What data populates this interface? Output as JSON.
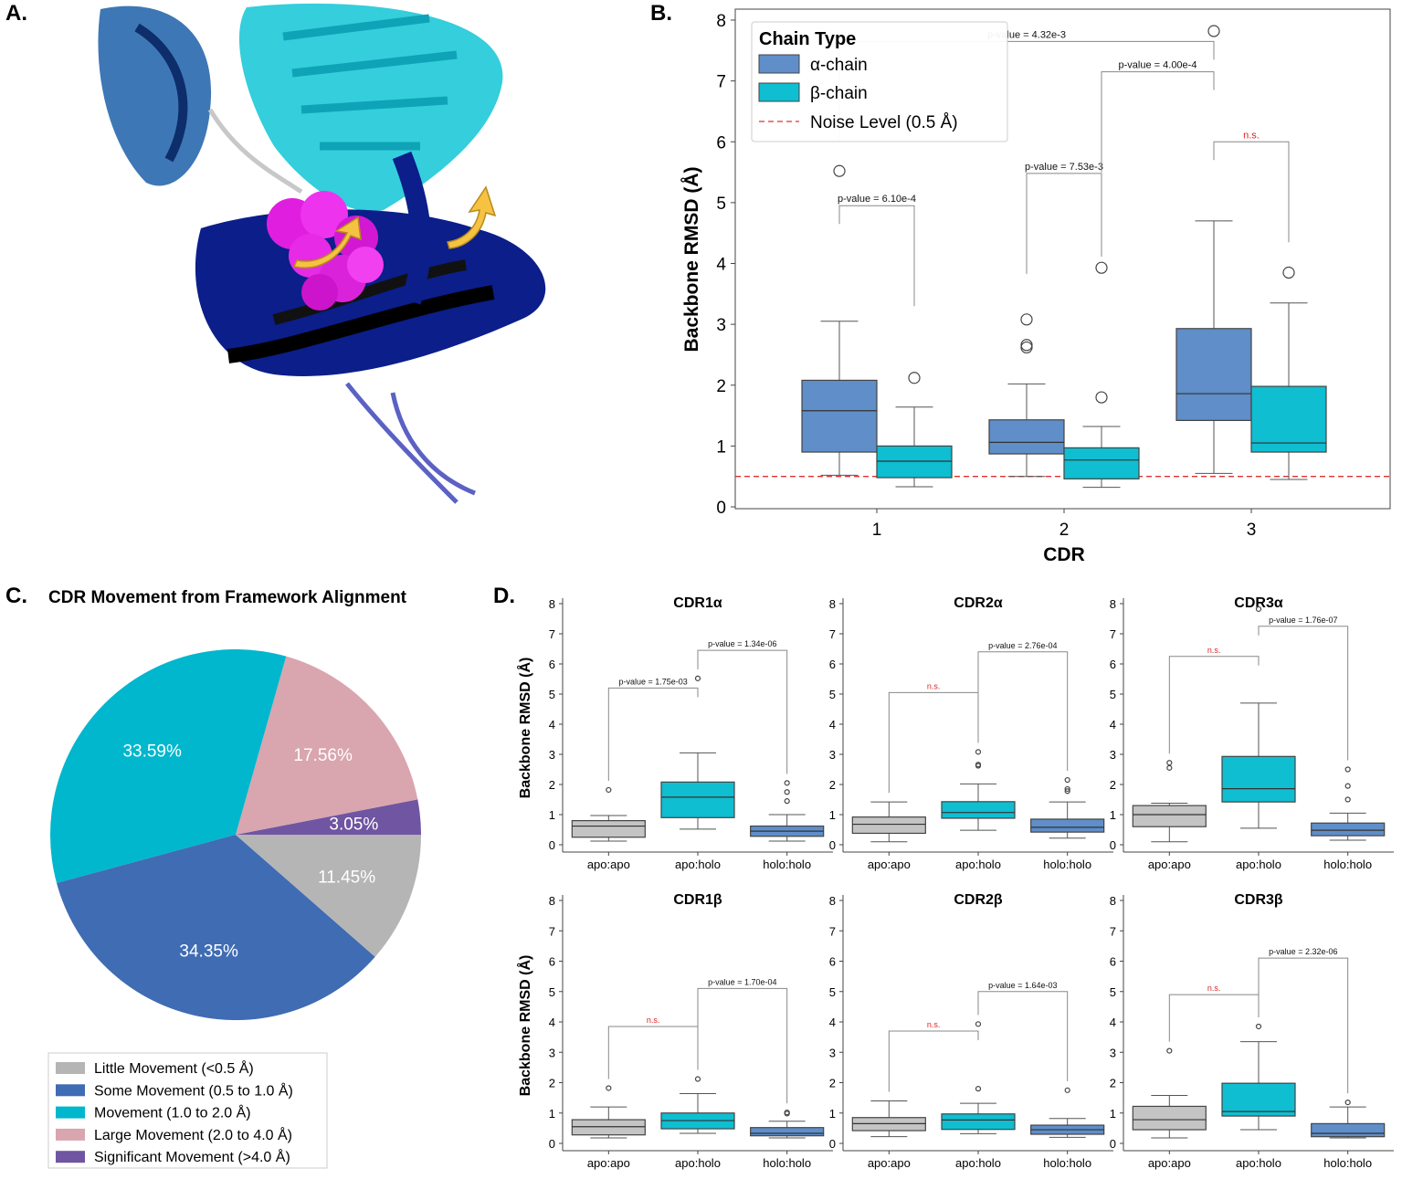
{
  "colors": {
    "alpha": "#5f8ec9",
    "beta": "#0fbed0",
    "apo": "#c4c4c4",
    "pie_little": "#b5b5b5",
    "pie_some": "#3f6cb3",
    "pie_movement": "#00b7cd",
    "pie_large": "#d9a5ae",
    "pie_significant": "#6f55a2",
    "noise": "#dd3333",
    "ns": "#dd2222"
  },
  "panels": {
    "a": "A.",
    "b": "B.",
    "c": "C.",
    "d": "D."
  },
  "structure_icon": "tcr-pmhc-ribbon-structure",
  "chart_data": [
    {
      "id": "B",
      "type": "boxplot",
      "xlabel": "CDR",
      "ylabel": "Backbone RMSD (Å)",
      "ylim": [
        0,
        8
      ],
      "yticks": [
        0,
        1,
        2,
        3,
        4,
        5,
        6,
        7,
        8
      ],
      "categories": [
        "1",
        "2",
        "3"
      ],
      "legend": {
        "title": "Chain Type",
        "placement": "top-left",
        "items": [
          "α-chain",
          "β-chain",
          "Noise Level (0.5 Å)"
        ]
      },
      "noise_level": 0.5,
      "series": [
        {
          "name": "α-chain",
          "color_key": "alpha",
          "boxes": [
            {
              "whislo": 0.52,
              "q1": 0.9,
              "med": 1.58,
              "q3": 2.08,
              "whishi": 3.05,
              "fliers": [
                5.52
              ]
            },
            {
              "whislo": 0.5,
              "q1": 0.87,
              "med": 1.06,
              "q3": 1.43,
              "whishi": 2.02,
              "fliers": [
                2.62,
                2.66,
                3.08
              ]
            },
            {
              "whislo": 0.55,
              "q1": 1.42,
              "med": 1.86,
              "q3": 2.93,
              "whishi": 4.7,
              "fliers": [
                7.82
              ]
            }
          ]
        },
        {
          "name": "β-chain",
          "color_key": "beta",
          "boxes": [
            {
              "whislo": 0.33,
              "q1": 0.48,
              "med": 0.75,
              "q3": 1.0,
              "whishi": 1.64,
              "fliers": [
                2.12
              ]
            },
            {
              "whislo": 0.32,
              "q1": 0.46,
              "med": 0.77,
              "q3": 0.97,
              "whishi": 1.32,
              "fliers": [
                1.8,
                3.93
              ]
            },
            {
              "whislo": 0.45,
              "q1": 0.9,
              "med": 1.05,
              "q3": 1.98,
              "whishi": 3.35,
              "fliers": [
                3.85
              ]
            }
          ]
        }
      ],
      "annotations": [
        {
          "text": "p-value = 6.10e-4",
          "from": "α1",
          "to": "β1",
          "level": 4.95
        },
        {
          "text": "p-value = 7.53e-3",
          "from": "α2",
          "to": "β2",
          "level": 5.48
        },
        {
          "text": "p-value = 4.00e-4",
          "from": "β2",
          "to": "α3",
          "level": 7.15
        },
        {
          "text": "n.s.",
          "from": "α3",
          "to": "β3",
          "level": 6.0,
          "ns": true
        },
        {
          "text": "p-value = 4.32e-3",
          "from": "α1",
          "to": "α3",
          "level": 7.65
        }
      ]
    },
    {
      "id": "C",
      "type": "pie",
      "title": "CDR Movement from Framework Alignment",
      "slices": [
        {
          "label": "Little Movement (<0.5 Å)",
          "value": 11.45,
          "pct": "11.45%",
          "color_key": "pie_little"
        },
        {
          "label": "Some Movement (0.5 to 1.0 Å)",
          "value": 34.35,
          "pct": "34.35%",
          "color_key": "pie_some"
        },
        {
          "label": "Movement (1.0 to 2.0 Å)",
          "value": 33.59,
          "pct": "33.59%",
          "color_key": "pie_movement"
        },
        {
          "label": "Large Movement (2.0 to 4.0 Å)",
          "value": 17.56,
          "pct": "17.56%",
          "color_key": "pie_large"
        },
        {
          "label": "Significant Movement (>4.0 Å)",
          "value": 3.05,
          "pct": "3.05%",
          "color_key": "pie_significant"
        }
      ],
      "draw_order": [
        4,
        3,
        2,
        1,
        0
      ],
      "legend": {
        "placement": "bottom-left",
        "order": [
          0,
          1,
          2,
          3,
          4
        ]
      }
    },
    {
      "id": "D",
      "type": "boxplot-grid",
      "ylabel": "Backbone RMSD (Å)",
      "ylim": [
        0,
        8
      ],
      "yticks": [
        0,
        1,
        2,
        3,
        4,
        5,
        6,
        7,
        8
      ],
      "categories": [
        "apo:apo",
        "apo:holo",
        "holo:holo"
      ],
      "panels": [
        {
          "title": "CDR1α",
          "boxes": [
            {
              "color_key": "apo",
              "whislo": 0.12,
              "q1": 0.25,
              "med": 0.62,
              "q3": 0.8,
              "whishi": 0.97,
              "fliers": [
                1.82
              ]
            },
            {
              "color_key": "beta",
              "whislo": 0.52,
              "q1": 0.9,
              "med": 1.58,
              "q3": 2.08,
              "whishi": 3.05,
              "fliers": [
                5.52
              ]
            },
            {
              "color_key": "alpha",
              "whislo": 0.12,
              "q1": 0.28,
              "med": 0.45,
              "q3": 0.62,
              "whishi": 1.0,
              "fliers": [
                1.45,
                1.75,
                2.05
              ]
            }
          ],
          "annotations": [
            {
              "text": "p-value = 1.75e-03",
              "from": 0,
              "to": 1,
              "level": 5.2
            },
            {
              "text": "p-value = 1.34e-06",
              "from": 1,
              "to": 2,
              "level": 6.45
            }
          ]
        },
        {
          "title": "CDR2α",
          "boxes": [
            {
              "color_key": "apo",
              "whislo": 0.1,
              "q1": 0.38,
              "med": 0.68,
              "q3": 0.92,
              "whishi": 1.42,
              "fliers": []
            },
            {
              "color_key": "beta",
              "whislo": 0.48,
              "q1": 0.88,
              "med": 1.07,
              "q3": 1.43,
              "whishi": 2.02,
              "fliers": [
                2.62,
                2.66,
                3.08
              ]
            },
            {
              "color_key": "alpha",
              "whislo": 0.22,
              "q1": 0.42,
              "med": 0.58,
              "q3": 0.85,
              "whishi": 1.42,
              "fliers": [
                1.78,
                1.85,
                2.15
              ]
            }
          ],
          "annotations": [
            {
              "text": "n.s.",
              "from": 0,
              "to": 1,
              "level": 5.05,
              "ns": true
            },
            {
              "text": "p-value = 2.76e-04",
              "from": 1,
              "to": 2,
              "level": 6.4
            }
          ]
        },
        {
          "title": "CDR3α",
          "boxes": [
            {
              "color_key": "apo",
              "whislo": 0.1,
              "q1": 0.6,
              "med": 1.0,
              "q3": 1.3,
              "whishi": 1.38,
              "fliers": [
                2.55,
                2.72
              ]
            },
            {
              "color_key": "beta",
              "whislo": 0.55,
              "q1": 1.42,
              "med": 1.86,
              "q3": 2.93,
              "whishi": 4.7,
              "fliers": [
                7.82
              ]
            },
            {
              "color_key": "alpha",
              "whislo": 0.15,
              "q1": 0.3,
              "med": 0.48,
              "q3": 0.72,
              "whishi": 1.05,
              "fliers": [
                1.5,
                1.95,
                2.5
              ]
            }
          ],
          "annotations": [
            {
              "text": "n.s.",
              "from": 0,
              "to": 1,
              "level": 6.25,
              "ns": true
            },
            {
              "text": "p-value = 1.76e-07",
              "from": 1,
              "to": 2,
              "level": 7.25
            }
          ]
        },
        {
          "title": "CDR1β",
          "boxes": [
            {
              "color_key": "apo",
              "whislo": 0.18,
              "q1": 0.28,
              "med": 0.55,
              "q3": 0.78,
              "whishi": 1.2,
              "fliers": [
                1.82
              ]
            },
            {
              "color_key": "beta",
              "whislo": 0.33,
              "q1": 0.48,
              "med": 0.75,
              "q3": 1.0,
              "whishi": 1.64,
              "fliers": [
                2.12
              ]
            },
            {
              "color_key": "alpha",
              "whislo": 0.18,
              "q1": 0.25,
              "med": 0.33,
              "q3": 0.52,
              "whishi": 0.73,
              "fliers": [
                0.98,
                1.02
              ]
            }
          ],
          "annotations": [
            {
              "text": "n.s.",
              "from": 0,
              "to": 1,
              "level": 3.85,
              "ns": true
            },
            {
              "text": "p-value = 1.70e-04",
              "from": 1,
              "to": 2,
              "level": 5.1
            }
          ]
        },
        {
          "title": "CDR2β",
          "boxes": [
            {
              "color_key": "apo",
              "whislo": 0.22,
              "q1": 0.42,
              "med": 0.65,
              "q3": 0.85,
              "whishi": 1.4,
              "fliers": []
            },
            {
              "color_key": "beta",
              "whislo": 0.32,
              "q1": 0.46,
              "med": 0.77,
              "q3": 0.97,
              "whishi": 1.32,
              "fliers": [
                1.8,
                3.93
              ]
            },
            {
              "color_key": "alpha",
              "whislo": 0.2,
              "q1": 0.3,
              "med": 0.45,
              "q3": 0.6,
              "whishi": 0.82,
              "fliers": [
                1.75
              ]
            }
          ],
          "annotations": [
            {
              "text": "n.s.",
              "from": 0,
              "to": 1,
              "level": 3.7,
              "ns": true
            },
            {
              "text": "p-value = 1.64e-03",
              "from": 1,
              "to": 2,
              "level": 5.0
            }
          ]
        },
        {
          "title": "CDR3β",
          "boxes": [
            {
              "color_key": "apo",
              "whislo": 0.18,
              "q1": 0.45,
              "med": 0.78,
              "q3": 1.22,
              "whishi": 1.58,
              "fliers": [
                3.05
              ]
            },
            {
              "color_key": "beta",
              "whislo": 0.45,
              "q1": 0.9,
              "med": 1.05,
              "q3": 1.98,
              "whishi": 3.35,
              "fliers": [
                3.85
              ]
            },
            {
              "color_key": "alpha",
              "whislo": 0.18,
              "q1": 0.22,
              "med": 0.33,
              "q3": 0.65,
              "whishi": 1.2,
              "fliers": [
                1.35
              ]
            }
          ],
          "annotations": [
            {
              "text": "n.s.",
              "from": 0,
              "to": 1,
              "level": 4.9,
              "ns": true
            },
            {
              "text": "p-value = 2.32e-06",
              "from": 1,
              "to": 2,
              "level": 6.1
            }
          ]
        }
      ]
    }
  ]
}
